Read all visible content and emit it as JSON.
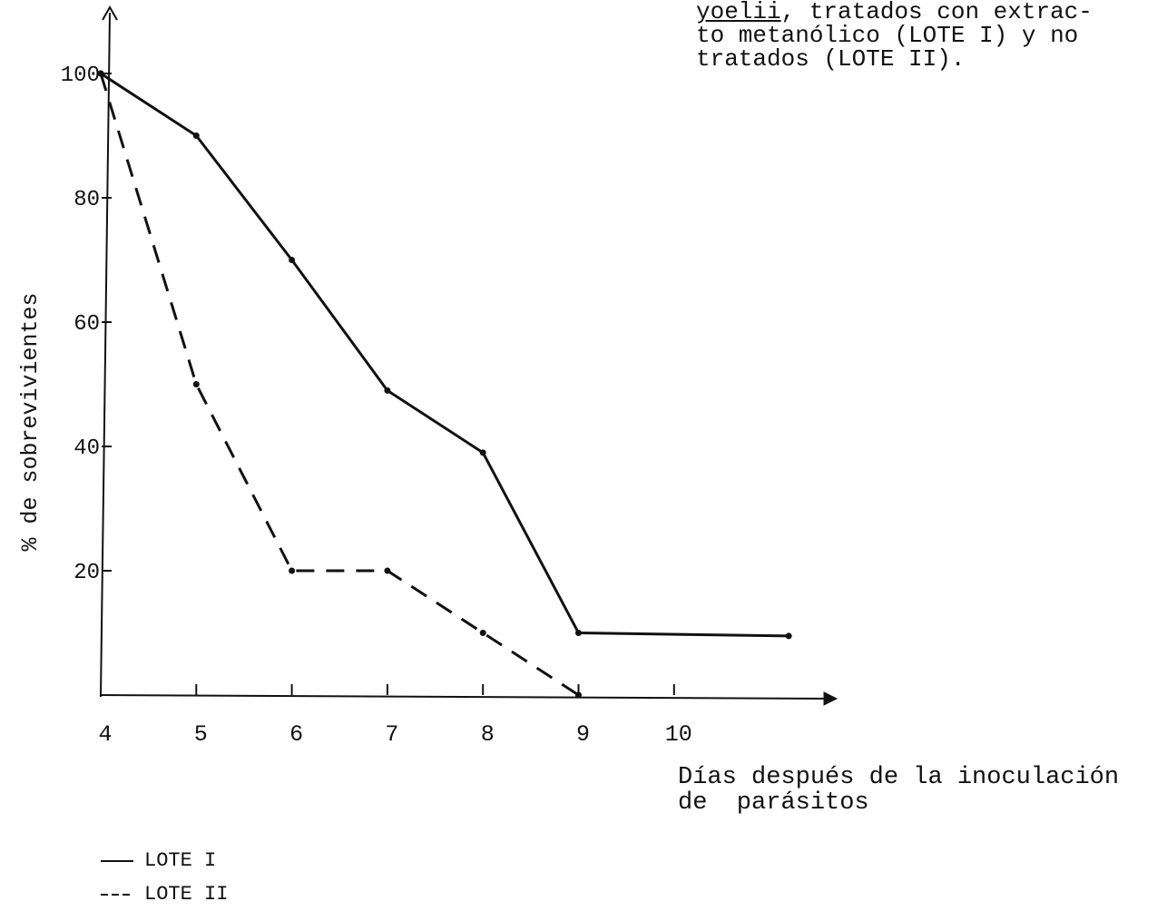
{
  "caption": {
    "line1_underlined": "yoelii",
    "line1_rest": ", tratados con extrac-",
    "line2": "to metanólico (LOTE I) y no",
    "line3": "tratados (LOTE II)."
  },
  "chart_data": {
    "type": "line",
    "xlabel_line1": "Días después de la inoculación",
    "xlabel_line2": "de  parásitos",
    "ylabel": "% de sobrevivientes",
    "x_ticks": [
      "4",
      "5",
      "6",
      "7",
      "8",
      "9",
      "10"
    ],
    "y_ticks": [
      "20",
      "40",
      "60",
      "80",
      "100"
    ],
    "xlim": [
      4,
      11.5
    ],
    "ylim": [
      0,
      100
    ],
    "series": [
      {
        "name": "LOTE I",
        "style": "solid",
        "x": [
          4,
          5,
          6,
          7,
          8,
          9,
          11.2
        ],
        "y": [
          100,
          90,
          70,
          49,
          39,
          10,
          9.5
        ]
      },
      {
        "name": "LOTE II",
        "style": "dashed",
        "x": [
          4,
          5,
          6,
          7,
          8,
          9
        ],
        "y": [
          100,
          50,
          20,
          20,
          10,
          0
        ]
      }
    ],
    "grid": false,
    "legend_position": "bottom-left"
  }
}
